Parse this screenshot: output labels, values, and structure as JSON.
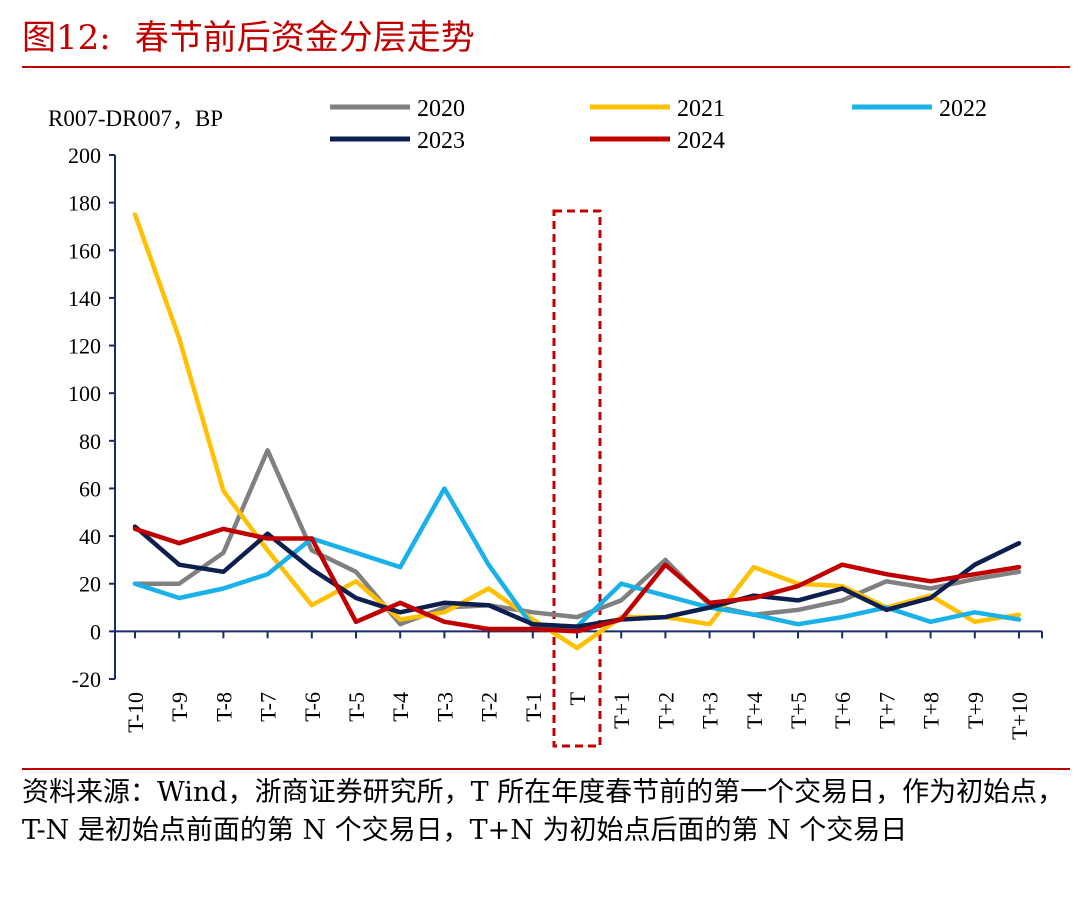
{
  "header": {
    "figure_number": "图12:",
    "title": "春节前后资金分层走势"
  },
  "chart_data": {
    "type": "line",
    "title": "春节前后资金分层走势",
    "ylabel": "R007-DR007，BP",
    "xlabel": "",
    "ylim": [
      -20,
      200
    ],
    "yticks": [
      -20,
      0,
      20,
      40,
      60,
      80,
      100,
      120,
      140,
      160,
      180,
      200
    ],
    "grid": false,
    "legend_position": "top",
    "categories": [
      "T-10",
      "T-9",
      "T-8",
      "T-7",
      "T-6",
      "T-5",
      "T-4",
      "T-3",
      "T-2",
      "T-1",
      "T",
      "T+1",
      "T+2",
      "T+3",
      "T+4",
      "T+5",
      "T+6",
      "T+7",
      "T+8",
      "T+9",
      "T+10"
    ],
    "series": [
      {
        "name": "2020",
        "color": "#808080",
        "values": [
          20,
          20,
          33,
          76,
          34,
          25,
          3,
          10,
          11,
          8,
          6,
          13,
          30,
          11,
          7,
          9,
          13,
          21,
          18,
          22,
          25
        ]
      },
      {
        "name": "2021",
        "color": "#ffc000",
        "values": [
          175,
          123,
          59,
          34,
          11,
          21,
          5,
          8,
          18,
          5,
          -7,
          6,
          6,
          3,
          27,
          20,
          19,
          10,
          15,
          4,
          7
        ]
      },
      {
        "name": "2022",
        "color": "#1ab0e8",
        "values": [
          20,
          14,
          18,
          24,
          39,
          33,
          27,
          60,
          28,
          2,
          2,
          20,
          15,
          10,
          7,
          3,
          6,
          10,
          4,
          8,
          5
        ]
      },
      {
        "name": "2023",
        "color": "#0d1f4f",
        "values": [
          44,
          28,
          25,
          41,
          26,
          14,
          8,
          12,
          11,
          3,
          2,
          5,
          6,
          10,
          15,
          13,
          18,
          9,
          14,
          28,
          37
        ]
      },
      {
        "name": "2024",
        "color": "#c00000",
        "values": [
          43,
          37,
          43,
          39,
          39,
          4,
          12,
          4,
          1,
          1,
          0,
          5,
          28,
          12,
          14,
          19,
          28,
          24,
          21,
          24,
          27
        ]
      }
    ],
    "highlight": {
      "category": "T",
      "style": "dashed-box",
      "color": "#c00000"
    }
  },
  "source": {
    "text": "资料来源：Wind，浙商证券研究所，T 所在年度春节前的第一个交易日，作为初始点，T-N 是初始点前面的第 N 个交易日，T+N 为初始点后面的第 N 个交易日"
  }
}
